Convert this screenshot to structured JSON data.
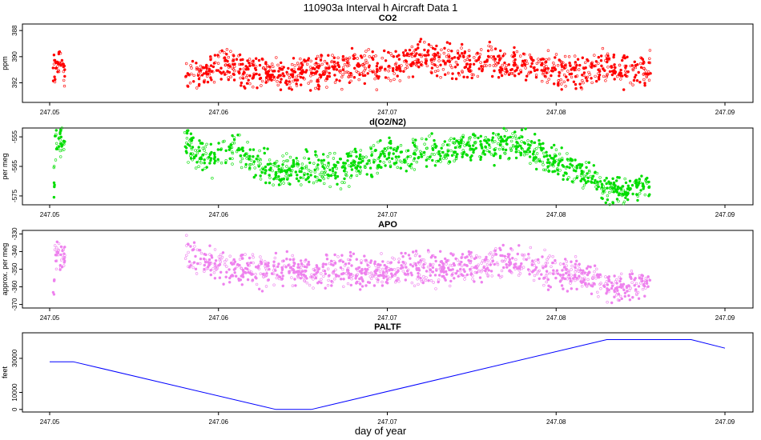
{
  "page_title": "110903a   Interval h Aircraft Data 1",
  "x_axis_label": "day of year",
  "x_ticks": [
    "247.05",
    "247.06",
    "247.07",
    "247.08",
    "247.09"
  ],
  "colors": {
    "co2": "#ff0000",
    "o2n2": "#00dd00",
    "apo": "#ee82ee",
    "paltf": "#0000ff",
    "frame": "#000000"
  },
  "chart_data": [
    {
      "type": "scatter",
      "title": "CO2",
      "ylabel": "ppm",
      "yticks": [
        "392",
        "390",
        "388"
      ],
      "xlim": [
        247.05,
        247.09
      ],
      "note": "y axis increases downward in the original plot",
      "series": [
        {
          "values_summary": "dense cloud around 390.5–391.5 ppm, 247.050–247.051 and 247.058–247.0856"
        }
      ],
      "points": [
        {
          "x": 247.0503,
          "y": 391.3
        },
        {
          "x": 247.0505,
          "y": 390.4
        },
        {
          "x": 247.0508,
          "y": 391.0
        },
        {
          "x": 247.058,
          "y": 391.6
        },
        {
          "x": 247.059,
          "y": 391.4
        },
        {
          "x": 247.06,
          "y": 390.6
        },
        {
          "x": 247.061,
          "y": 390.9
        },
        {
          "x": 247.062,
          "y": 391.2
        },
        {
          "x": 247.063,
          "y": 391.3
        },
        {
          "x": 247.064,
          "y": 391.5
        },
        {
          "x": 247.065,
          "y": 391.1
        },
        {
          "x": 247.066,
          "y": 391.2
        },
        {
          "x": 247.067,
          "y": 391.0
        },
        {
          "x": 247.068,
          "y": 390.7
        },
        {
          "x": 247.069,
          "y": 391.0
        },
        {
          "x": 247.07,
          "y": 391.1
        },
        {
          "x": 247.071,
          "y": 390.6
        },
        {
          "x": 247.072,
          "y": 389.9
        },
        {
          "x": 247.073,
          "y": 390.2
        },
        {
          "x": 247.074,
          "y": 390.3
        },
        {
          "x": 247.075,
          "y": 390.8
        },
        {
          "x": 247.076,
          "y": 390.4
        },
        {
          "x": 247.077,
          "y": 390.9
        },
        {
          "x": 247.078,
          "y": 390.4
        },
        {
          "x": 247.079,
          "y": 390.7
        },
        {
          "x": 247.08,
          "y": 391.1
        },
        {
          "x": 247.081,
          "y": 391.3
        },
        {
          "x": 247.082,
          "y": 391.1
        },
        {
          "x": 247.083,
          "y": 390.6
        },
        {
          "x": 247.084,
          "y": 391.1
        },
        {
          "x": 247.085,
          "y": 391.0
        },
        {
          "x": 247.0856,
          "y": 391.0
        }
      ]
    },
    {
      "type": "scatter",
      "title": "d(O2/N2)",
      "ylabel": "per meg",
      "yticks": [
        "-555",
        "-565",
        "-575"
      ],
      "xlim": [
        247.05,
        247.09
      ],
      "points": [
        {
          "x": 247.0503,
          "y": -556
        },
        {
          "x": 247.0505,
          "y": -556.5
        },
        {
          "x": 247.0508,
          "y": -557
        },
        {
          "x": 247.058,
          "y": -556
        },
        {
          "x": 247.059,
          "y": -562
        },
        {
          "x": 247.06,
          "y": -561
        },
        {
          "x": 247.061,
          "y": -558
        },
        {
          "x": 247.062,
          "y": -564
        },
        {
          "x": 247.063,
          "y": -566
        },
        {
          "x": 247.064,
          "y": -567
        },
        {
          "x": 247.065,
          "y": -566
        },
        {
          "x": 247.066,
          "y": -566
        },
        {
          "x": 247.067,
          "y": -567
        },
        {
          "x": 247.068,
          "y": -564
        },
        {
          "x": 247.069,
          "y": -563
        },
        {
          "x": 247.07,
          "y": -561
        },
        {
          "x": 247.071,
          "y": -563
        },
        {
          "x": 247.072,
          "y": -559
        },
        {
          "x": 247.073,
          "y": -560
        },
        {
          "x": 247.074,
          "y": -559
        },
        {
          "x": 247.075,
          "y": -558
        },
        {
          "x": 247.076,
          "y": -558
        },
        {
          "x": 247.077,
          "y": -557
        },
        {
          "x": 247.078,
          "y": -558
        },
        {
          "x": 247.079,
          "y": -560
        },
        {
          "x": 247.08,
          "y": -564
        },
        {
          "x": 247.081,
          "y": -566
        },
        {
          "x": 247.082,
          "y": -568
        },
        {
          "x": 247.083,
          "y": -573
        },
        {
          "x": 247.084,
          "y": -574
        },
        {
          "x": 247.085,
          "y": -571
        },
        {
          "x": 247.0856,
          "y": -571
        }
      ]
    },
    {
      "type": "scatter",
      "title": "APO",
      "ylabel": "approx. per meg",
      "yticks": [
        "-330",
        "-340",
        "-350",
        "-360",
        "-370"
      ],
      "xlim": [
        247.05,
        247.09
      ],
      "points": [
        {
          "x": 247.0503,
          "y": -341
        },
        {
          "x": 247.0505,
          "y": -340
        },
        {
          "x": 247.0508,
          "y": -342
        },
        {
          "x": 247.058,
          "y": -340
        },
        {
          "x": 247.059,
          "y": -344
        },
        {
          "x": 247.06,
          "y": -348
        },
        {
          "x": 247.061,
          "y": -350
        },
        {
          "x": 247.062,
          "y": -351
        },
        {
          "x": 247.063,
          "y": -352
        },
        {
          "x": 247.064,
          "y": -350
        },
        {
          "x": 247.065,
          "y": -352
        },
        {
          "x": 247.066,
          "y": -351
        },
        {
          "x": 247.067,
          "y": -352
        },
        {
          "x": 247.068,
          "y": -351
        },
        {
          "x": 247.069,
          "y": -352
        },
        {
          "x": 247.07,
          "y": -351
        },
        {
          "x": 247.071,
          "y": -349
        },
        {
          "x": 247.072,
          "y": -351
        },
        {
          "x": 247.073,
          "y": -350
        },
        {
          "x": 247.074,
          "y": -349
        },
        {
          "x": 247.075,
          "y": -348
        },
        {
          "x": 247.076,
          "y": -347
        },
        {
          "x": 247.077,
          "y": -345
        },
        {
          "x": 247.078,
          "y": -347
        },
        {
          "x": 247.079,
          "y": -349
        },
        {
          "x": 247.08,
          "y": -352
        },
        {
          "x": 247.081,
          "y": -353
        },
        {
          "x": 247.082,
          "y": -355
        },
        {
          "x": 247.083,
          "y": -358
        },
        {
          "x": 247.084,
          "y": -360
        },
        {
          "x": 247.085,
          "y": -358
        },
        {
          "x": 247.0856,
          "y": -357
        }
      ]
    },
    {
      "type": "line",
      "title": "PALTF",
      "ylabel": "feet",
      "yticks": [
        "0",
        "10000",
        "30000"
      ],
      "xlim": [
        247.05,
        247.09
      ],
      "points": [
        {
          "x": 247.05,
          "y": 28000
        },
        {
          "x": 247.0514,
          "y": 28000
        },
        {
          "x": 247.0634,
          "y": 0
        },
        {
          "x": 247.0655,
          "y": 0
        },
        {
          "x": 247.083,
          "y": 41000
        },
        {
          "x": 247.088,
          "y": 41000
        },
        {
          "x": 247.09,
          "y": 36000
        }
      ]
    }
  ]
}
